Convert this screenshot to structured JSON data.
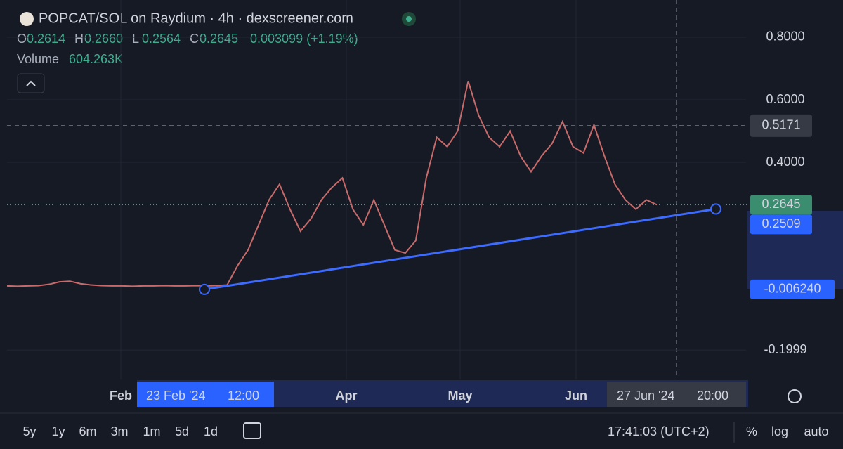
{
  "header": {
    "title": "POPCAT/SOL on Raydium · 4h · dexscreener.com",
    "ohlc": [
      {
        "key": "O",
        "value": "0.2614"
      },
      {
        "key": "H",
        "value": "0.2660"
      },
      {
        "key": "L",
        "value": "0.2564"
      },
      {
        "key": "C",
        "value": "0.2645"
      }
    ],
    "change": "0.003099 (+1.19%)",
    "volume_label": "Volume",
    "volume": "604.263K"
  },
  "chart_data": {
    "type": "line",
    "color": "#c96a6a",
    "values": [
      0.005,
      0.004,
      0.005,
      0.006,
      0.01,
      0.018,
      0.02,
      0.012,
      0.008,
      0.006,
      0.005,
      0.005,
      0.004,
      0.005,
      0.005,
      0.006,
      0.005,
      0.005,
      0.006,
      0.005,
      0.006,
      0.008,
      0.07,
      0.12,
      0.2,
      0.28,
      0.33,
      0.25,
      0.18,
      0.22,
      0.28,
      0.32,
      0.35,
      0.25,
      0.2,
      0.28,
      0.2,
      0.12,
      0.11,
      0.15,
      0.35,
      0.48,
      0.45,
      0.5,
      0.66,
      0.55,
      0.48,
      0.45,
      0.5,
      0.42,
      0.37,
      0.42,
      0.46,
      0.53,
      0.45,
      0.43,
      0.52,
      0.42,
      0.33,
      0.28,
      0.25,
      0.28,
      0.2645
    ],
    "ylim": [
      -0.294,
      0.919
    ],
    "yticks": [
      {
        "value": 0.8,
        "label": "0.8000"
      },
      {
        "value": 0.6,
        "label": "0.6000"
      },
      {
        "value": 0.4,
        "label": "0.4000"
      },
      {
        "value": -0.1999,
        "label": "-0.1999"
      }
    ],
    "xticks": [
      "Feb",
      "Apr",
      "May",
      "Jun"
    ],
    "crosshair_price": 0.5171,
    "last_price": 0.2645,
    "trendline": {
      "start": {
        "value": -0.00624,
        "label": "-0.006240",
        "date": "23 Feb '24",
        "time": "12:00"
      },
      "end": {
        "value": 0.2509,
        "date": "27 Jun '24",
        "time": "20:00"
      }
    }
  },
  "toolbar": {
    "ranges": [
      "5y",
      "1y",
      "6m",
      "3m",
      "1m",
      "5d",
      "1d"
    ],
    "clock": "17:41:03 (UTC+2)",
    "options": [
      "%",
      "log",
      "auto"
    ]
  }
}
